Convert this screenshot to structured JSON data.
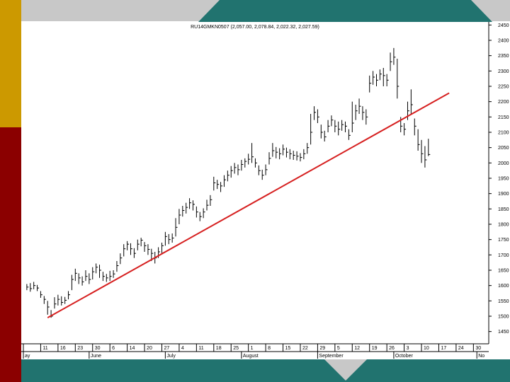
{
  "colors": {
    "gold_bar": "#CC9900",
    "maroon_bar": "#8B0000",
    "teal": "#21736F",
    "gray_band": "#C8C8C8",
    "trendline": "#D62020"
  },
  "chart_data": {
    "type": "ohlc",
    "title": "RU14GMKN0507 (2,057.00, 2,078.84, 2,022.32, 2,027.59)",
    "ylim": [
      1410,
      2460
    ],
    "yticks": [
      1450,
      1500,
      1550,
      1600,
      1650,
      1700,
      1750,
      1800,
      1850,
      1900,
      1950,
      2000,
      2050,
      2100,
      2150,
      2200,
      2250,
      2300,
      2350,
      2400,
      2450
    ],
    "xlim": [
      0,
      133
    ],
    "x_ticks": [
      {
        "label": "",
        "x": 0
      },
      {
        "label": "11",
        "x": 5
      },
      {
        "label": "16",
        "x": 10
      },
      {
        "label": "23",
        "x": 15
      },
      {
        "label": "30",
        "x": 20
      },
      {
        "label": "6",
        "x": 25
      },
      {
        "label": "14",
        "x": 30
      },
      {
        "label": "20",
        "x": 35
      },
      {
        "label": "27",
        "x": 40
      },
      {
        "label": "4",
        "x": 45
      },
      {
        "label": "11",
        "x": 50
      },
      {
        "label": "18",
        "x": 55
      },
      {
        "label": "25",
        "x": 60
      },
      {
        "label": "1",
        "x": 65
      },
      {
        "label": "8",
        "x": 70
      },
      {
        "label": "15",
        "x": 75
      },
      {
        "label": "22",
        "x": 80
      },
      {
        "label": "29",
        "x": 85
      },
      {
        "label": "5",
        "x": 90
      },
      {
        "label": "12",
        "x": 95
      },
      {
        "label": "19",
        "x": 100
      },
      {
        "label": "26",
        "x": 105
      },
      {
        "label": "3",
        "x": 110
      },
      {
        "label": "10",
        "x": 115
      },
      {
        "label": "17",
        "x": 120
      },
      {
        "label": "24",
        "x": 125
      },
      {
        "label": "30",
        "x": 130
      }
    ],
    "months": [
      {
        "label": "ay",
        "x": 0
      },
      {
        "label": "June",
        "x": 19
      },
      {
        "label": "July",
        "x": 41
      },
      {
        "label": "August",
        "x": 63
      },
      {
        "label": "September",
        "x": 85
      },
      {
        "label": "October",
        "x": 107
      },
      {
        "label": "No",
        "x": 131
      }
    ],
    "trendline": {
      "x1": 7,
      "y1": 1495,
      "x2": 123,
      "y2": 2228
    },
    "bars": [
      [
        1595,
        1585,
        1605
      ],
      [
        1590,
        1580,
        1608
      ],
      [
        1600,
        1588,
        1612
      ],
      [
        1592,
        1582,
        1602
      ],
      [
        1570,
        1560,
        1582
      ],
      [
        1555,
        1540,
        1566
      ],
      [
        1530,
        1505,
        1550
      ],
      [
        1500,
        1495,
        1520
      ],
      [
        1540,
        1525,
        1562
      ],
      [
        1555,
        1535,
        1570
      ],
      [
        1545,
        1535,
        1565
      ],
      [
        1552,
        1540,
        1563
      ],
      [
        1570,
        1555,
        1582
      ],
      [
        1620,
        1585,
        1635
      ],
      [
        1640,
        1615,
        1655
      ],
      [
        1625,
        1605,
        1640
      ],
      [
        1612,
        1600,
        1630
      ],
      [
        1630,
        1615,
        1650
      ],
      [
        1620,
        1605,
        1640
      ],
      [
        1645,
        1620,
        1660
      ],
      [
        1660,
        1640,
        1672
      ],
      [
        1650,
        1625,
        1668
      ],
      [
        1630,
        1615,
        1645
      ],
      [
        1625,
        1612,
        1638
      ],
      [
        1630,
        1615,
        1648
      ],
      [
        1638,
        1625,
        1650
      ],
      [
        1665,
        1645,
        1680
      ],
      [
        1690,
        1670,
        1705
      ],
      [
        1720,
        1695,
        1735
      ],
      [
        1735,
        1715,
        1745
      ],
      [
        1720,
        1700,
        1738
      ],
      [
        1705,
        1690,
        1722
      ],
      [
        1735,
        1715,
        1750
      ],
      [
        1748,
        1728,
        1756
      ],
      [
        1730,
        1710,
        1742
      ],
      [
        1718,
        1700,
        1735
      ],
      [
        1705,
        1680,
        1720
      ],
      [
        1690,
        1672,
        1710
      ],
      [
        1710,
        1690,
        1725
      ],
      [
        1730,
        1705,
        1740
      ],
      [
        1760,
        1730,
        1775
      ],
      [
        1750,
        1735,
        1768
      ],
      [
        1755,
        1740,
        1770
      ],
      [
        1790,
        1760,
        1820
      ],
      [
        1830,
        1800,
        1850
      ],
      [
        1845,
        1825,
        1860
      ],
      [
        1855,
        1835,
        1870
      ],
      [
        1870,
        1850,
        1885
      ],
      [
        1865,
        1845,
        1878
      ],
      [
        1840,
        1822,
        1858
      ],
      [
        1825,
        1810,
        1840
      ],
      [
        1840,
        1820,
        1852
      ],
      [
        1862,
        1845,
        1880
      ],
      [
        1880,
        1860,
        1895
      ],
      [
        1935,
        1910,
        1955
      ],
      [
        1930,
        1915,
        1945
      ],
      [
        1925,
        1905,
        1938
      ],
      [
        1945,
        1922,
        1960
      ],
      [
        1960,
        1940,
        1975
      ],
      [
        1975,
        1952,
        1990
      ],
      [
        1985,
        1965,
        2000
      ],
      [
        1978,
        1960,
        1995
      ],
      [
        1995,
        1975,
        2010
      ],
      [
        2005,
        1985,
        2015
      ],
      [
        2012,
        1995,
        2030
      ],
      [
        2020,
        2000,
        2065
      ],
      [
        2000,
        1985,
        2015
      ],
      [
        1975,
        1960,
        1992
      ],
      [
        1960,
        1945,
        1978
      ],
      [
        1978,
        1960,
        1995
      ],
      [
        2015,
        1995,
        2035
      ],
      [
        2040,
        2020,
        2065
      ],
      [
        2035,
        2015,
        2052
      ],
      [
        2030,
        2012,
        2048
      ],
      [
        2045,
        2025,
        2060
      ],
      [
        2035,
        2018,
        2050
      ],
      [
        2030,
        2012,
        2045
      ],
      [
        2025,
        2010,
        2040
      ],
      [
        2022,
        2008,
        2038
      ],
      [
        2018,
        2005,
        2032
      ],
      [
        2030,
        2012,
        2045
      ],
      [
        2050,
        2030,
        2065
      ],
      [
        2100,
        2060,
        2160
      ],
      [
        2165,
        2140,
        2185
      ],
      [
        2150,
        2130,
        2175
      ],
      [
        2100,
        2080,
        2125
      ],
      [
        2085,
        2070,
        2105
      ],
      [
        2120,
        2100,
        2140
      ],
      [
        2140,
        2120,
        2155
      ],
      [
        2120,
        2100,
        2140
      ],
      [
        2110,
        2090,
        2135
      ],
      [
        2125,
        2105,
        2140
      ],
      [
        2120,
        2100,
        2135
      ],
      [
        2090,
        2075,
        2110
      ],
      [
        2130,
        2100,
        2200
      ],
      [
        2170,
        2140,
        2190
      ],
      [
        2185,
        2160,
        2210
      ],
      [
        2165,
        2140,
        2185
      ],
      [
        2150,
        2125,
        2175
      ],
      [
        2260,
        2230,
        2285
      ],
      [
        2280,
        2255,
        2300
      ],
      [
        2270,
        2250,
        2290
      ],
      [
        2290,
        2270,
        2305
      ],
      [
        2285,
        2250,
        2310
      ],
      [
        2270,
        2250,
        2290
      ],
      [
        2330,
        2300,
        2360
      ],
      [
        2345,
        2320,
        2375
      ],
      [
        2250,
        2210,
        2340
      ],
      [
        2120,
        2100,
        2150
      ],
      [
        2110,
        2090,
        2130
      ],
      [
        2170,
        2140,
        2200
      ],
      [
        2190,
        2160,
        2240
      ],
      [
        2120,
        2090,
        2145
      ],
      [
        2060,
        2040,
        2110
      ],
      [
        2030,
        2000,
        2075
      ],
      [
        2010,
        1985,
        2055
      ],
      [
        2027.59,
        2022.32,
        2078.84
      ]
    ]
  }
}
